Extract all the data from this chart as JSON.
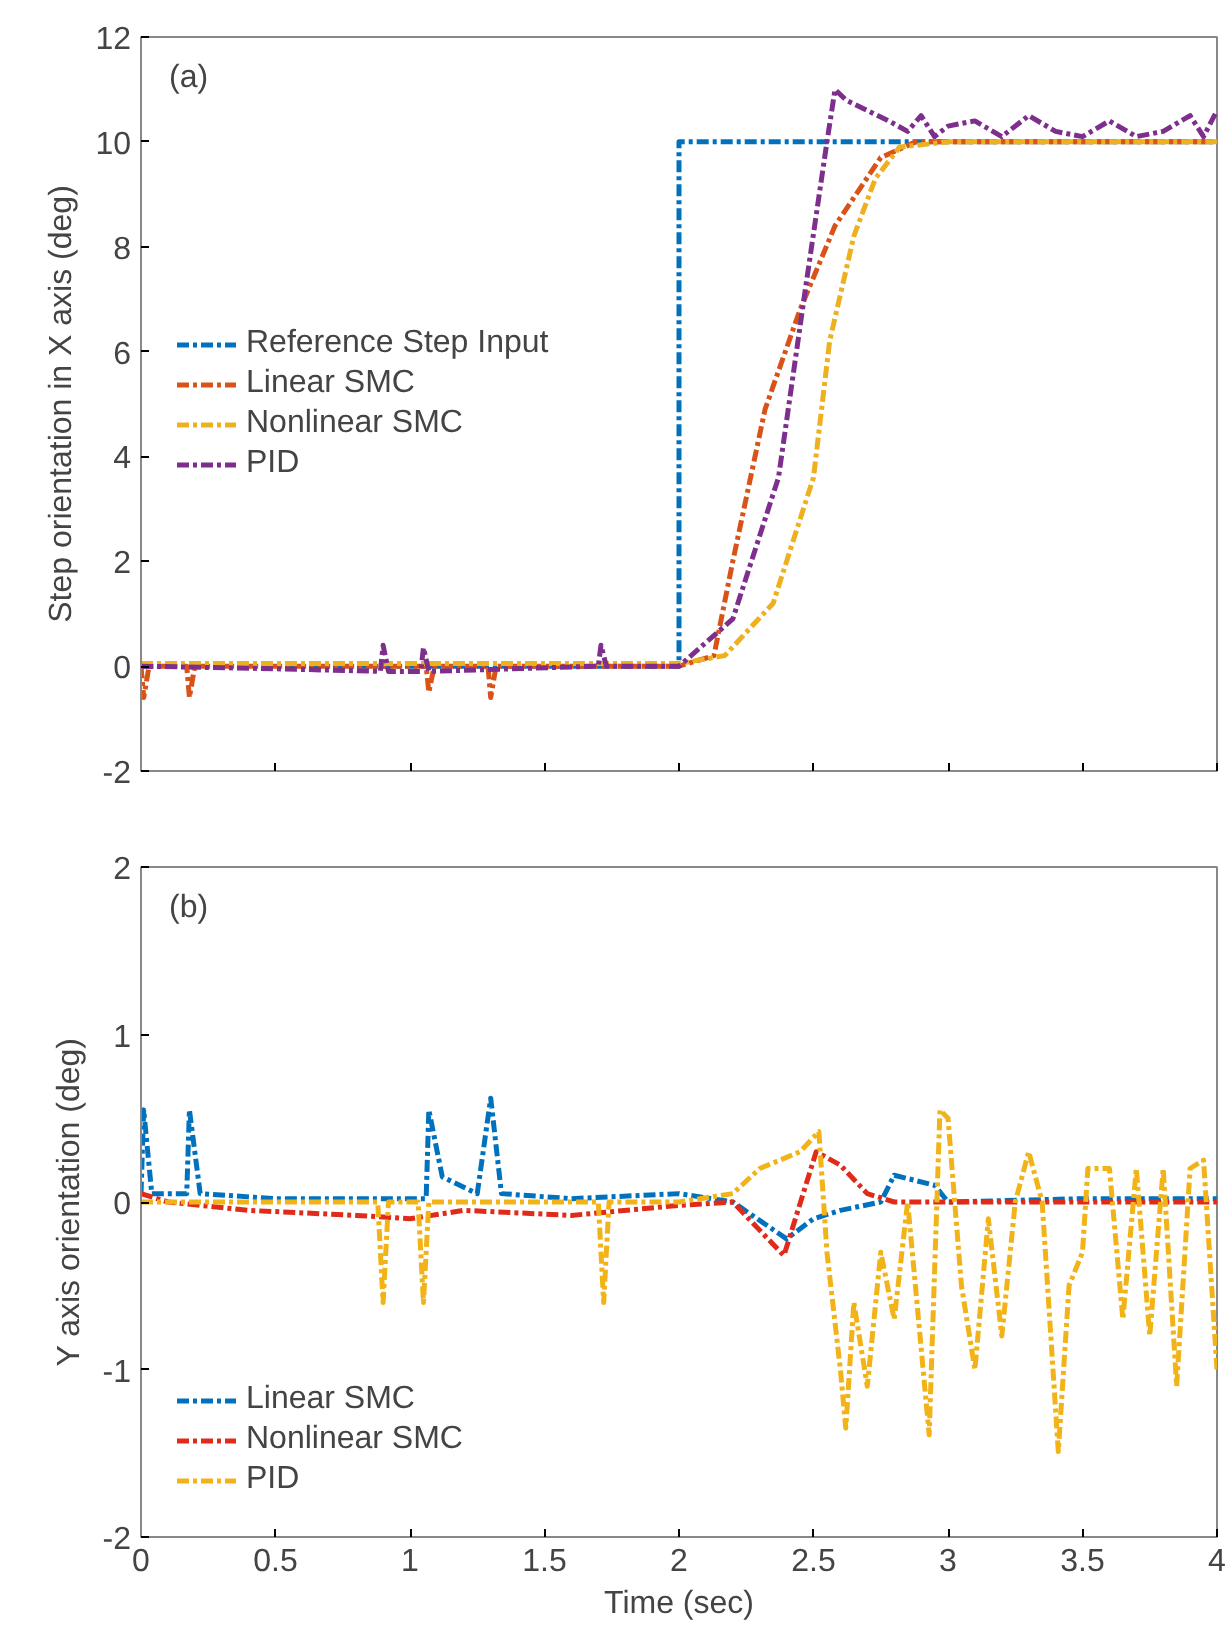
{
  "chart_data": [
    {
      "type": "line",
      "ylabel": "Step orientation in X axis (deg)",
      "annotations": [
        "(a)"
      ],
      "xlim": [
        0,
        4
      ],
      "xticks": [
        0,
        0.5,
        1,
        1.5,
        2,
        2.5,
        3,
        3.5,
        4
      ],
      "ylim": [
        -2,
        12
      ],
      "yticks": [
        -2,
        0,
        2,
        4,
        6,
        8,
        10,
        12
      ],
      "tick_labels": "y",
      "grid": false,
      "legend": "left",
      "line_style": "dashed",
      "series": [
        {
          "name": "Reference Step Input",
          "color": "#0072bd",
          "x": [
            0,
            2,
            2,
            4
          ],
          "values": [
            0,
            0,
            10,
            10
          ]
        },
        {
          "name": "Linear SMC",
          "color": "#d95319",
          "x": [
            0,
            0.01,
            0.03,
            0.17,
            0.18,
            0.2,
            0.5,
            1.06,
            1.07,
            1.09,
            1.29,
            1.3,
            1.32,
            1.6,
            2.0,
            2.13,
            2.2,
            2.32,
            2.45,
            2.58,
            2.75,
            2.88,
            3.0,
            4.0
          ],
          "values": [
            0,
            -0.6,
            0,
            0,
            -0.6,
            0,
            0,
            0,
            -0.5,
            0,
            0,
            -0.6,
            0,
            0,
            0,
            0.2,
            2.0,
            4.9,
            6.8,
            8.4,
            9.7,
            10,
            10,
            10
          ]
        },
        {
          "name": "Nonlinear SMC",
          "color": "#edb120",
          "x": [
            0,
            1.0,
            2.0,
            2.17,
            2.35,
            2.5,
            2.56,
            2.65,
            2.73,
            2.82,
            3.0,
            4.0
          ],
          "values": [
            0.05,
            0.05,
            0.05,
            0.2,
            1.2,
            3.6,
            6.2,
            8.2,
            9.3,
            9.9,
            10,
            10
          ]
        },
        {
          "name": "PID",
          "color": "#7e2f8e",
          "x": [
            0,
            0.5,
            0.89,
            0.9,
            0.92,
            1.04,
            1.05,
            1.07,
            1.7,
            1.71,
            1.73,
            2.0,
            2.2,
            2.37,
            2.47,
            2.55,
            2.58,
            2.62,
            2.7,
            2.78,
            2.85,
            2.9,
            2.95,
            3.0,
            3.1,
            3.2,
            3.3,
            3.4,
            3.5,
            3.6,
            3.7,
            3.8,
            3.9,
            3.95,
            4.0
          ],
          "values": [
            0,
            -0.05,
            -0.1,
            0.4,
            -0.1,
            -0.1,
            0.35,
            -0.1,
            0,
            0.4,
            0,
            0,
            0.9,
            3.6,
            7.2,
            10,
            11,
            10.8,
            10.6,
            10.4,
            10.2,
            10.5,
            10.1,
            10.3,
            10.4,
            10.1,
            10.5,
            10.2,
            10.1,
            10.4,
            10.1,
            10.2,
            10.5,
            10.1,
            10.6
          ]
        }
      ]
    },
    {
      "type": "line",
      "xlabel": "Time (sec)",
      "ylabel": "Y axis orientation (deg)",
      "annotations": [
        "(b)"
      ],
      "xlim": [
        0,
        4
      ],
      "xticks": [
        0,
        0.5,
        1,
        1.5,
        2,
        2.5,
        3,
        3.5,
        4
      ],
      "ylim": [
        -2,
        2
      ],
      "yticks": [
        -2,
        -1,
        0,
        1,
        2
      ],
      "grid": false,
      "legend": "bottom left",
      "line_style": "dashed",
      "series": [
        {
          "name": "Linear SMC",
          "color": "#0072bd",
          "x": [
            0,
            0.01,
            0.04,
            0.17,
            0.18,
            0.22,
            0.5,
            0.9,
            1.06,
            1.07,
            1.12,
            1.25,
            1.3,
            1.34,
            1.6,
            2.0,
            2.2,
            2.4,
            2.5,
            2.6,
            2.75,
            2.8,
            2.95,
            3.0,
            3.5,
            4.0
          ],
          "values": [
            0.05,
            0.55,
            0.05,
            0.05,
            0.55,
            0.05,
            0.02,
            0.02,
            0.02,
            0.55,
            0.15,
            0.05,
            0.62,
            0.05,
            0.02,
            0.05,
            0,
            -0.22,
            -0.1,
            -0.05,
            0,
            0.16,
            0.1,
            0,
            0.02,
            0.02
          ]
        },
        {
          "name": "Nonlinear SMC",
          "color": "#e02a1a",
          "x": [
            0,
            0.1,
            0.4,
            0.8,
            1.0,
            1.2,
            1.6,
            2.0,
            2.2,
            2.39,
            2.51,
            2.6,
            2.7,
            2.8,
            3.0,
            3.5,
            4.0
          ],
          "values": [
            0.05,
            0,
            -0.05,
            -0.08,
            -0.1,
            -0.05,
            -0.08,
            -0.02,
            0,
            -0.32,
            0.3,
            0.22,
            0.05,
            0,
            0,
            0,
            0
          ]
        },
        {
          "name": "PID",
          "color": "#f2b318",
          "x": [
            0,
            0.5,
            0.88,
            0.9,
            0.92,
            1.03,
            1.05,
            1.07,
            1.7,
            1.72,
            1.74,
            2.0,
            2.2,
            2.3,
            2.45,
            2.52,
            2.55,
            2.6,
            2.62,
            2.65,
            2.7,
            2.75,
            2.8,
            2.85,
            2.93,
            2.97,
            3.0,
            3.05,
            3.1,
            3.15,
            3.2,
            3.25,
            3.3,
            3.35,
            3.41,
            3.45,
            3.5,
            3.52,
            3.6,
            3.65,
            3.7,
            3.75,
            3.8,
            3.85,
            3.9,
            3.95,
            4.0
          ],
          "values": [
            0,
            0,
            0,
            -0.6,
            0,
            0,
            -0.6,
            0,
            0,
            -0.6,
            0,
            0,
            0.05,
            0.2,
            0.3,
            0.42,
            -0.3,
            -1.0,
            -1.35,
            -0.6,
            -1.1,
            -0.3,
            -0.7,
            0,
            -1.39,
            0.55,
            0.5,
            -0.5,
            -1.0,
            -0.1,
            -0.8,
            0,
            0.3,
            0,
            -1.49,
            -0.5,
            -0.3,
            0.2,
            0.2,
            -0.7,
            0.2,
            -0.8,
            0.2,
            -1.1,
            0.2,
            0.25,
            -1.0
          ]
        }
      ]
    }
  ]
}
